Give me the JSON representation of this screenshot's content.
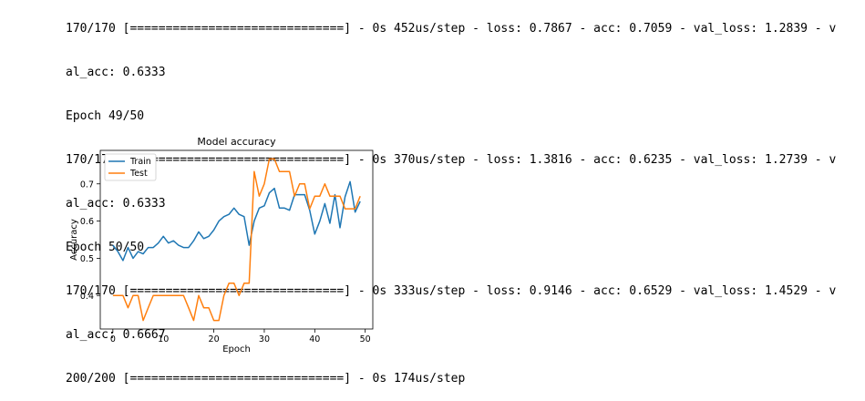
{
  "output": {
    "lines": [
      "170/170 [==============================] - 0s 452us/step - loss: 0.7867 - acc: 0.7059 - val_loss: 1.2839 - v",
      "al_acc: 0.6333",
      "Epoch 49/50",
      "170/170 [==============================] - 0s 370us/step - loss: 1.3816 - acc: 0.6235 - val_loss: 1.2739 - v",
      "al_acc: 0.6333",
      "Epoch 50/50",
      "170/170 [==============================] - 0s 333us/step - loss: 0.9146 - acc: 0.6529 - val_loss: 1.4529 - v",
      "al_acc: 0.6667",
      "200/200 [==============================] - 0s 174us/step"
    ]
  },
  "chart_data": {
    "type": "line",
    "title": "Model accuracy",
    "xlabel": "Epoch",
    "ylabel": "Accuracy",
    "xlim": [
      -2.5,
      51.5
    ],
    "ylim": [
      0.31,
      0.79
    ],
    "xticks": [
      0,
      10,
      20,
      30,
      40,
      50
    ],
    "yticks": [
      0.4,
      0.5,
      0.6,
      0.7
    ],
    "legend_position": "top-left",
    "grid": false,
    "x": [
      0,
      1,
      2,
      3,
      4,
      5,
      6,
      7,
      8,
      9,
      10,
      11,
      12,
      13,
      14,
      15,
      16,
      17,
      18,
      19,
      20,
      21,
      22,
      23,
      24,
      25,
      26,
      27,
      28,
      29,
      30,
      31,
      32,
      33,
      34,
      35,
      36,
      37,
      38,
      39,
      40,
      41,
      42,
      43,
      44,
      45,
      46,
      47,
      48,
      49
    ],
    "series": [
      {
        "name": "Train",
        "color": "#1f77b4",
        "values": [
          0.535,
          0.518,
          0.494,
          0.529,
          0.5,
          0.518,
          0.512,
          0.529,
          0.529,
          0.541,
          0.559,
          0.541,
          0.547,
          0.535,
          0.529,
          0.529,
          0.547,
          0.571,
          0.553,
          0.559,
          0.576,
          0.6,
          0.612,
          0.618,
          0.635,
          0.618,
          0.612,
          0.535,
          0.6,
          0.635,
          0.641,
          0.676,
          0.688,
          0.635,
          0.635,
          0.629,
          0.671,
          0.671,
          0.671,
          0.629,
          0.565,
          0.6,
          0.647,
          0.594,
          0.671,
          0.582,
          0.665,
          0.706,
          0.624,
          0.653
        ]
      },
      {
        "name": "Test",
        "color": "#ff7f0e",
        "values": [
          0.4,
          0.4,
          0.4,
          0.367,
          0.4,
          0.4,
          0.333,
          0.367,
          0.4,
          0.4,
          0.4,
          0.4,
          0.4,
          0.4,
          0.4,
          0.367,
          0.333,
          0.4,
          0.367,
          0.367,
          0.333,
          0.333,
          0.4,
          0.433,
          0.433,
          0.4,
          0.433,
          0.433,
          0.733,
          0.667,
          0.7,
          0.767,
          0.767,
          0.733,
          0.733,
          0.733,
          0.667,
          0.7,
          0.7,
          0.633,
          0.667,
          0.667,
          0.7,
          0.667,
          0.667,
          0.667,
          0.633,
          0.633,
          0.633,
          0.667
        ]
      }
    ]
  }
}
